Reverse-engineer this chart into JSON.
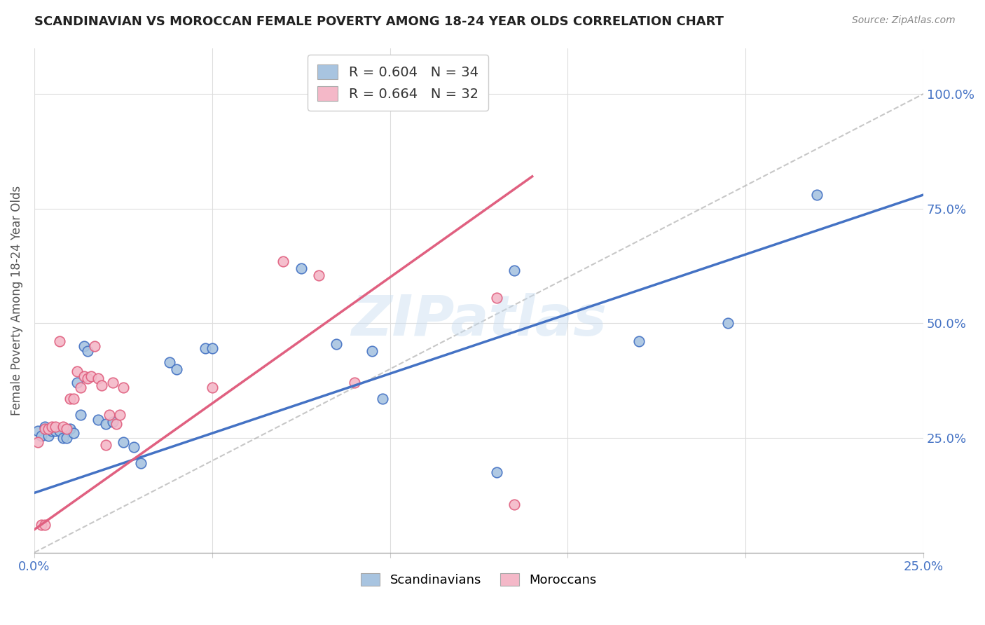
{
  "title": "SCANDINAVIAN VS MOROCCAN FEMALE POVERTY AMONG 18-24 YEAR OLDS CORRELATION CHART",
  "source": "Source: ZipAtlas.com",
  "ylabel": "Female Poverty Among 18-24 Year Olds",
  "xlim": [
    0.0,
    0.25
  ],
  "ylim": [
    0.0,
    1.1
  ],
  "scand_color": "#a8c4e0",
  "moroc_color": "#f4b8c8",
  "scand_line_color": "#4472c4",
  "moroc_line_color": "#e06080",
  "diag_line_color": "#aaaaaa",
  "legend_scand_label": "R = 0.604   N = 34",
  "legend_moroc_label": "R = 0.664   N = 32",
  "watermark": "ZIPatlas",
  "scand_line_x0": 0.0,
  "scand_line_y0": 0.13,
  "scand_line_x1": 0.25,
  "scand_line_y1": 0.78,
  "moroc_line_x0": 0.0,
  "moroc_line_y0": 0.05,
  "moroc_line_x1": 0.14,
  "moroc_line_y1": 0.82,
  "scandinavians_x": [
    0.001,
    0.002,
    0.003,
    0.004,
    0.005,
    0.006,
    0.007,
    0.008,
    0.009,
    0.01,
    0.011,
    0.012,
    0.013,
    0.014,
    0.015,
    0.018,
    0.02,
    0.022,
    0.025,
    0.028,
    0.03,
    0.038,
    0.04,
    0.048,
    0.05,
    0.075,
    0.085,
    0.095,
    0.098,
    0.13,
    0.135,
    0.17,
    0.195,
    0.22
  ],
  "scandinavians_y": [
    0.265,
    0.255,
    0.275,
    0.255,
    0.265,
    0.265,
    0.265,
    0.25,
    0.25,
    0.27,
    0.26,
    0.37,
    0.3,
    0.45,
    0.44,
    0.29,
    0.28,
    0.285,
    0.24,
    0.23,
    0.195,
    0.415,
    0.4,
    0.445,
    0.445,
    0.62,
    0.455,
    0.44,
    0.335,
    0.175,
    0.615,
    0.46,
    0.5,
    0.78
  ],
  "moroccans_x": [
    0.001,
    0.002,
    0.003,
    0.004,
    0.005,
    0.006,
    0.007,
    0.008,
    0.009,
    0.01,
    0.011,
    0.012,
    0.013,
    0.014,
    0.015,
    0.016,
    0.017,
    0.018,
    0.019,
    0.02,
    0.021,
    0.022,
    0.023,
    0.024,
    0.025,
    0.003,
    0.05,
    0.07,
    0.08,
    0.09,
    0.13,
    0.135
  ],
  "moroccans_y": [
    0.24,
    0.06,
    0.27,
    0.27,
    0.275,
    0.275,
    0.46,
    0.275,
    0.27,
    0.335,
    0.335,
    0.395,
    0.36,
    0.385,
    0.38,
    0.385,
    0.45,
    0.38,
    0.365,
    0.235,
    0.3,
    0.37,
    0.28,
    0.3,
    0.36,
    0.06,
    0.36,
    0.635,
    0.605,
    0.37,
    0.555,
    0.105
  ]
}
